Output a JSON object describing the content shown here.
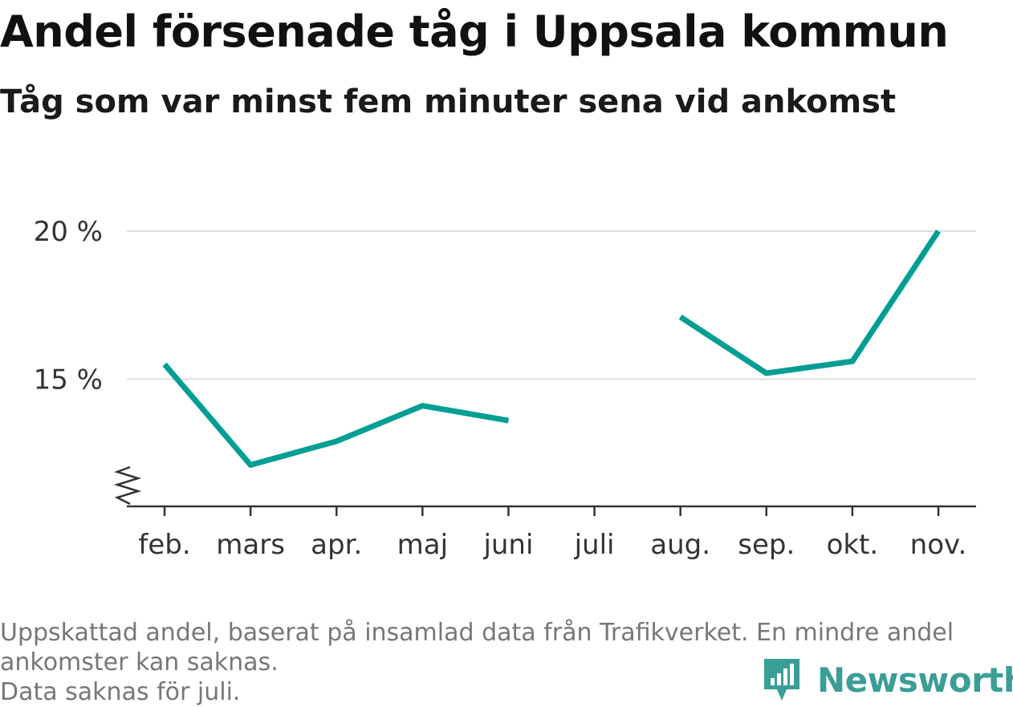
{
  "title": "Andel försenade tåg i Uppsala kommun",
  "subtitle": "Tåg som var minst fem minuter sena vid ankomst",
  "colors": {
    "series": "#009e94",
    "grid": "#dddddd",
    "axis": "#333333",
    "brand": "#3a9e96"
  },
  "chart_data": {
    "type": "line",
    "categories": [
      "feb.",
      "mars",
      "apr.",
      "maj",
      "juni",
      "juli",
      "aug.",
      "sep.",
      "okt.",
      "nov."
    ],
    "series": [
      {
        "values": [
          15.5,
          12.1,
          12.9,
          14.1,
          13.6,
          null,
          17.1,
          15.2,
          15.6,
          20.0
        ]
      }
    ],
    "y_ticks": [
      15,
      20
    ],
    "y_tick_labels": [
      "15 %",
      "20 %"
    ],
    "ylim": [
      10.7,
      20.0
    ],
    "y_axis_break": true,
    "grid": true,
    "xlabel": "",
    "ylabel": ""
  },
  "footer": {
    "lines": [
      "Uppskattad andel, baserat på insamlad data från Trafikverket. En mindre andel",
      "ankomster kan saknas.",
      "Data saknas för juli."
    ]
  },
  "brand": {
    "name": "Newsworthy",
    "icon": "newsworthy-logo-icon"
  }
}
